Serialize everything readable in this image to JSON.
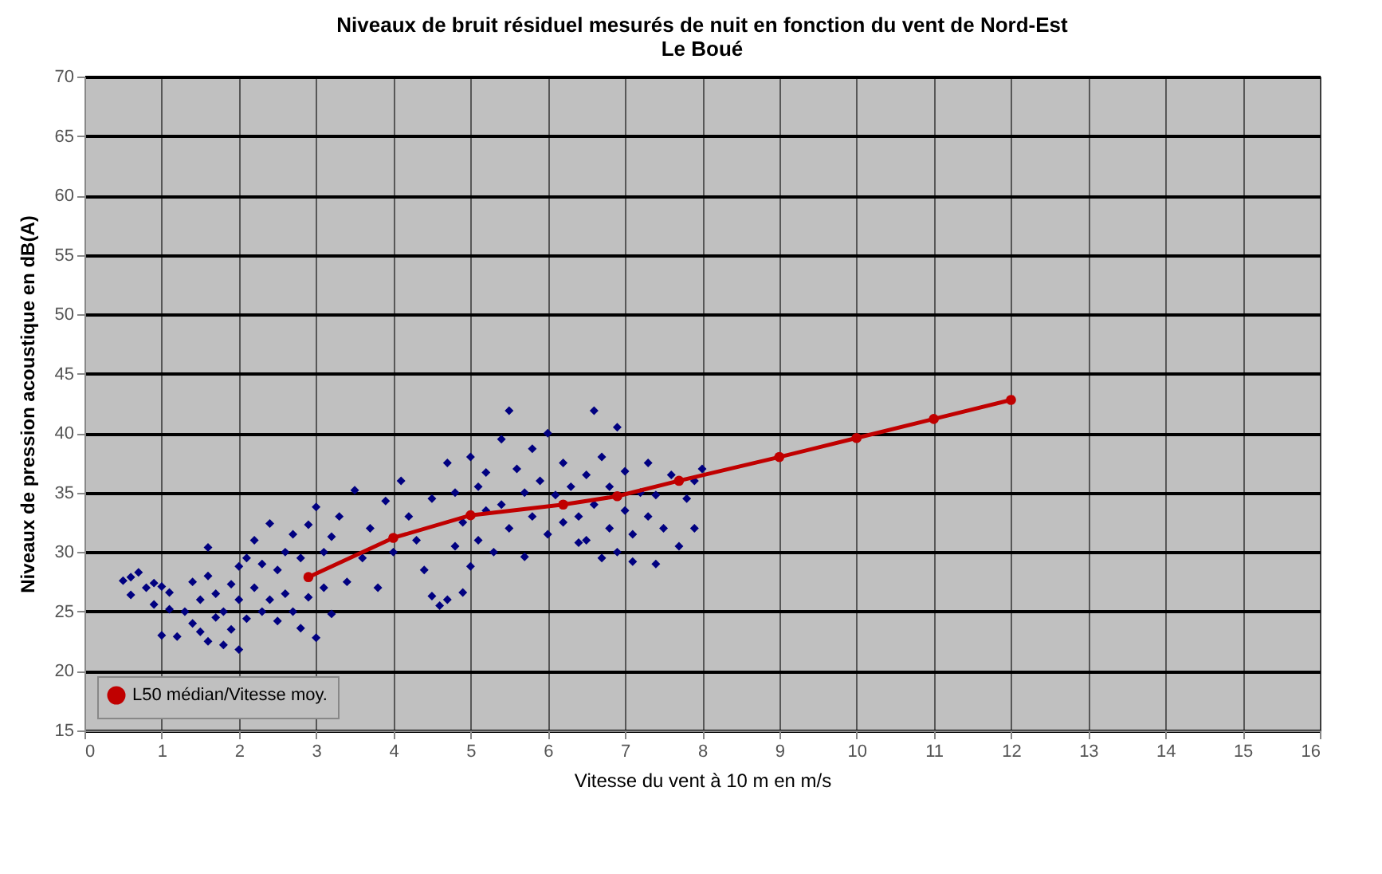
{
  "chart_data": {
    "type": "scatter",
    "title": "Niveaux de bruit  résiduel mesurés de nuit en fonction du vent de Nord-Est",
    "subtitle": "Le Boué",
    "xlabel": "Vitesse du vent  à 10 m en m/s",
    "ylabel": "Niveaux de pression acoustique en dB(A)",
    "xlim": [
      0,
      16
    ],
    "xticks": [
      0,
      1,
      2,
      3,
      4,
      5,
      6,
      7,
      8,
      9,
      10,
      11,
      12,
      13,
      14,
      15,
      16
    ],
    "ylim": [
      15,
      70
    ],
    "yticks": [
      15,
      20,
      25,
      30,
      35,
      40,
      45,
      50,
      55,
      60,
      65,
      70
    ],
    "grid": true,
    "legend": "bottom left",
    "series": [
      {
        "type": "scatter",
        "color": "#000080",
        "marker": "diamond",
        "x": [
          0.5,
          0.6,
          0.7,
          0.6,
          0.8,
          0.9,
          1.0,
          0.9,
          1.0,
          1.1,
          1.2,
          1.1,
          1.3,
          1.4,
          1.4,
          1.5,
          1.5,
          1.6,
          1.6,
          1.6,
          1.7,
          1.7,
          1.8,
          1.8,
          1.9,
          1.9,
          2.0,
          2.0,
          2.0,
          2.1,
          2.1,
          2.2,
          2.2,
          2.3,
          2.3,
          2.4,
          2.4,
          2.5,
          2.5,
          2.6,
          2.6,
          2.7,
          2.7,
          2.8,
          2.8,
          2.9,
          2.9,
          3.0,
          3.0,
          3.1,
          3.1,
          3.2,
          3.2,
          3.3,
          3.4,
          3.5,
          3.6,
          3.7,
          3.8,
          3.9,
          4.0,
          4.1,
          4.2,
          4.3,
          4.4,
          4.5,
          4.5,
          4.6,
          4.7,
          4.7,
          4.8,
          4.8,
          4.9,
          4.9,
          5.0,
          5.0,
          5.1,
          5.1,
          5.2,
          5.2,
          5.3,
          5.4,
          5.4,
          5.5,
          5.5,
          5.6,
          5.7,
          5.7,
          5.8,
          5.8,
          5.9,
          6.0,
          6.0,
          6.1,
          6.2,
          6.2,
          6.3,
          6.4,
          6.4,
          6.5,
          6.5,
          6.6,
          6.6,
          6.7,
          6.7,
          6.8,
          6.8,
          6.9,
          6.9,
          7.0,
          7.0,
          7.1,
          7.1,
          7.2,
          7.3,
          7.3,
          7.4,
          7.4,
          7.5,
          7.6,
          7.7,
          7.8,
          7.9,
          7.9,
          8.0
        ],
        "values": [
          27.6,
          27.9,
          28.3,
          26.4,
          27.0,
          27.4,
          27.1,
          25.6,
          23.0,
          25.2,
          22.9,
          26.6,
          25.0,
          27.5,
          24.0,
          23.3,
          26.0,
          22.5,
          28.0,
          30.4,
          24.5,
          26.5,
          22.2,
          25.0,
          27.3,
          23.5,
          21.8,
          26.0,
          28.8,
          24.4,
          29.5,
          27.0,
          31.0,
          25.0,
          29.0,
          32.4,
          26.0,
          28.5,
          24.2,
          30.0,
          26.5,
          31.5,
          25.0,
          29.5,
          23.6,
          32.3,
          26.2,
          33.8,
          22.8,
          30.0,
          27.0,
          31.3,
          24.8,
          33.0,
          27.5,
          35.2,
          29.5,
          32.0,
          27.0,
          34.3,
          30.0,
          36.0,
          33.0,
          31.0,
          28.5,
          34.5,
          26.3,
          25.5,
          26.0,
          37.5,
          30.5,
          35.0,
          26.6,
          32.5,
          28.8,
          38.0,
          35.5,
          31.0,
          33.5,
          36.7,
          30.0,
          39.5,
          34.0,
          41.9,
          32.0,
          37.0,
          35.0,
          29.6,
          38.7,
          33.0,
          36.0,
          40.0,
          31.5,
          34.8,
          37.5,
          32.5,
          35.5,
          33.0,
          30.8,
          36.5,
          31.0,
          41.9,
          34.0,
          29.5,
          38.0,
          32.0,
          35.5,
          30.0,
          40.5,
          33.5,
          36.8,
          29.2,
          31.5,
          35.0,
          33.0,
          37.5,
          29.0,
          34.8,
          32.0,
          36.5,
          30.5,
          34.5,
          32.0,
          36.0,
          37.0
        ]
      },
      {
        "type": "line",
        "name": "L50 médian/Vitesse moy.",
        "color": "#c00000",
        "marker": "circle",
        "x": [
          2.9,
          4.0,
          5.0,
          6.2,
          6.9,
          7.7,
          9,
          10,
          11,
          12
        ],
        "values": [
          27.9,
          31.2,
          33.1,
          34.0,
          34.7,
          36.0,
          38.0,
          39.6,
          41.2,
          42.8
        ]
      }
    ]
  }
}
